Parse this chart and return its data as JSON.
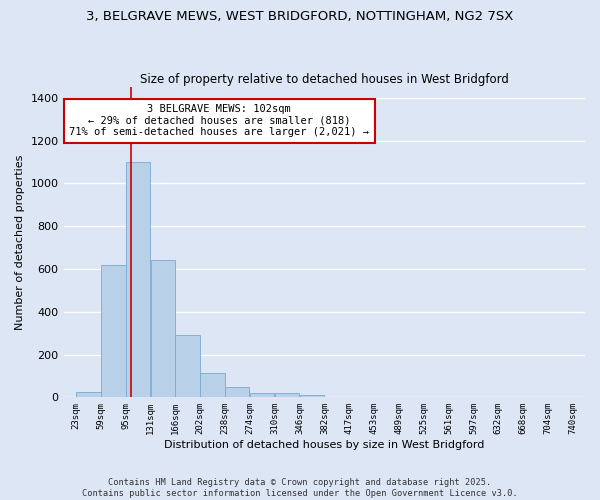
{
  "title1": "3, BELGRAVE MEWS, WEST BRIDGFORD, NOTTINGHAM, NG2 7SX",
  "title2": "Size of property relative to detached houses in West Bridgford",
  "xlabel": "Distribution of detached houses by size in West Bridgford",
  "ylabel": "Number of detached properties",
  "bar_color": "#b8d0e8",
  "bar_edge_color": "#7aaad0",
  "bg_color": "#dce6f5",
  "grid_color": "#ffffff",
  "bins": [
    23,
    59,
    95,
    131,
    166,
    202,
    238,
    274,
    310,
    346,
    382,
    417,
    453,
    489,
    525,
    561,
    597,
    632,
    668,
    704,
    740
  ],
  "bin_labels": [
    "23sqm",
    "59sqm",
    "95sqm",
    "131sqm",
    "166sqm",
    "202sqm",
    "238sqm",
    "274sqm",
    "310sqm",
    "346sqm",
    "382sqm",
    "417sqm",
    "453sqm",
    "489sqm",
    "525sqm",
    "561sqm",
    "597sqm",
    "632sqm",
    "668sqm",
    "704sqm",
    "740sqm"
  ],
  "heights": [
    25,
    620,
    1100,
    640,
    290,
    115,
    47,
    20,
    18,
    13,
    0,
    0,
    0,
    0,
    0,
    0,
    0,
    0,
    0,
    0
  ],
  "red_line_x": 102,
  "annotation_text": "3 BELGRAVE MEWS: 102sqm\n← 29% of detached houses are smaller (818)\n71% of semi-detached houses are larger (2,021) →",
  "annotation_box_color": "#ffffff",
  "annotation_edge_color": "#cc0000",
  "red_line_color": "#cc0000",
  "ylim": [
    0,
    1450
  ],
  "yticks": [
    0,
    200,
    400,
    600,
    800,
    1000,
    1200,
    1400
  ],
  "footnote1": "Contains HM Land Registry data © Crown copyright and database right 2025.",
  "footnote2": "Contains public sector information licensed under the Open Government Licence v3.0."
}
